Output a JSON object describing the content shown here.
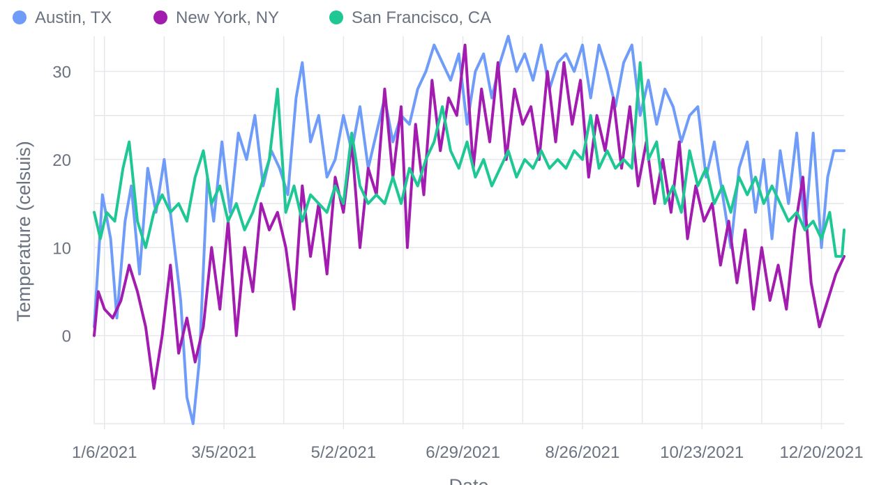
{
  "chart_data": {
    "type": "line",
    "xlabel": "Date",
    "ylabel": "Temperature (celsuis)",
    "x_ticks": [
      "1/6/2021",
      "3/5/2021",
      "5/2/2021",
      "6/29/2021",
      "8/26/2021",
      "10/23/2021",
      "12/20/2021"
    ],
    "y_ticks": [
      0,
      10,
      20,
      30
    ],
    "ylim": [
      -10,
      34
    ],
    "xlim": [
      "2021-01-01",
      "2021-12-31"
    ],
    "grid": true,
    "legend_position": "top-left",
    "series": [
      {
        "name": "Austin, TX",
        "color": "#6f9cf8",
        "points": [
          [
            "2021-01-01",
            1
          ],
          [
            "2021-01-05",
            16
          ],
          [
            "2021-01-09",
            11
          ],
          [
            "2021-01-12",
            2
          ],
          [
            "2021-01-16",
            13
          ],
          [
            "2021-01-19",
            17
          ],
          [
            "2021-01-23",
            7
          ],
          [
            "2021-01-27",
            19
          ],
          [
            "2021-01-31",
            14
          ],
          [
            "2021-02-04",
            20
          ],
          [
            "2021-02-08",
            12
          ],
          [
            "2021-02-12",
            4
          ],
          [
            "2021-02-15",
            -7
          ],
          [
            "2021-02-18",
            -10
          ],
          [
            "2021-02-21",
            -3
          ],
          [
            "2021-02-25",
            18
          ],
          [
            "2021-02-28",
            13
          ],
          [
            "2021-03-04",
            22
          ],
          [
            "2021-03-08",
            14
          ],
          [
            "2021-03-12",
            23
          ],
          [
            "2021-03-16",
            20
          ],
          [
            "2021-03-20",
            25
          ],
          [
            "2021-03-24",
            17
          ],
          [
            "2021-03-28",
            21
          ],
          [
            "2021-04-01",
            19
          ],
          [
            "2021-04-05",
            16
          ],
          [
            "2021-04-09",
            27
          ],
          [
            "2021-04-12",
            31
          ],
          [
            "2021-04-16",
            22
          ],
          [
            "2021-04-20",
            25
          ],
          [
            "2021-04-24",
            18
          ],
          [
            "2021-04-28",
            20
          ],
          [
            "2021-05-02",
            25
          ],
          [
            "2021-05-06",
            21
          ],
          [
            "2021-05-10",
            26
          ],
          [
            "2021-05-14",
            19
          ],
          [
            "2021-05-18",
            23
          ],
          [
            "2021-05-22",
            27
          ],
          [
            "2021-05-26",
            22
          ],
          [
            "2021-05-30",
            25
          ],
          [
            "2021-06-03",
            24
          ],
          [
            "2021-06-07",
            28
          ],
          [
            "2021-06-11",
            30
          ],
          [
            "2021-06-15",
            33
          ],
          [
            "2021-06-19",
            31
          ],
          [
            "2021-06-23",
            29
          ],
          [
            "2021-06-27",
            32
          ],
          [
            "2021-07-01",
            24
          ],
          [
            "2021-07-05",
            30
          ],
          [
            "2021-07-09",
            32
          ],
          [
            "2021-07-13",
            27
          ],
          [
            "2021-07-17",
            31
          ],
          [
            "2021-07-21",
            34
          ],
          [
            "2021-07-25",
            30
          ],
          [
            "2021-07-29",
            32
          ],
          [
            "2021-08-02",
            29
          ],
          [
            "2021-08-06",
            33
          ],
          [
            "2021-08-10",
            28
          ],
          [
            "2021-08-14",
            31
          ],
          [
            "2021-08-18",
            32
          ],
          [
            "2021-08-22",
            30
          ],
          [
            "2021-08-26",
            33
          ],
          [
            "2021-08-30",
            27
          ],
          [
            "2021-09-03",
            33
          ],
          [
            "2021-09-07",
            30
          ],
          [
            "2021-09-11",
            26
          ],
          [
            "2021-09-15",
            31
          ],
          [
            "2021-09-19",
            33
          ],
          [
            "2021-09-23",
            25
          ],
          [
            "2021-09-27",
            29
          ],
          [
            "2021-10-01",
            24
          ],
          [
            "2021-10-05",
            28
          ],
          [
            "2021-10-09",
            26
          ],
          [
            "2021-10-13",
            22
          ],
          [
            "2021-10-17",
            25
          ],
          [
            "2021-10-21",
            26
          ],
          [
            "2021-10-25",
            18
          ],
          [
            "2021-10-29",
            22
          ],
          [
            "2021-11-02",
            16
          ],
          [
            "2021-11-06",
            10
          ],
          [
            "2021-11-10",
            19
          ],
          [
            "2021-11-14",
            22
          ],
          [
            "2021-11-18",
            14
          ],
          [
            "2021-11-22",
            20
          ],
          [
            "2021-11-26",
            11
          ],
          [
            "2021-11-30",
            21
          ],
          [
            "2021-12-04",
            15
          ],
          [
            "2021-12-08",
            23
          ],
          [
            "2021-12-12",
            12
          ],
          [
            "2021-12-16",
            23
          ],
          [
            "2021-12-20",
            10
          ],
          [
            "2021-12-23",
            18
          ],
          [
            "2021-12-26",
            21
          ],
          [
            "2021-12-31",
            21
          ]
        ]
      },
      {
        "name": "New York, NY",
        "color": "#a21caf",
        "points": [
          [
            "2021-01-01",
            0
          ],
          [
            "2021-01-03",
            5
          ],
          [
            "2021-01-06",
            3
          ],
          [
            "2021-01-10",
            2
          ],
          [
            "2021-01-14",
            4
          ],
          [
            "2021-01-18",
            8
          ],
          [
            "2021-01-22",
            5
          ],
          [
            "2021-01-26",
            1
          ],
          [
            "2021-01-30",
            -6
          ],
          [
            "2021-02-03",
            0
          ],
          [
            "2021-02-07",
            8
          ],
          [
            "2021-02-11",
            -2
          ],
          [
            "2021-02-15",
            2
          ],
          [
            "2021-02-19",
            -3
          ],
          [
            "2021-02-23",
            1
          ],
          [
            "2021-02-27",
            10
          ],
          [
            "2021-03-03",
            3
          ],
          [
            "2021-03-07",
            13
          ],
          [
            "2021-03-11",
            0
          ],
          [
            "2021-03-15",
            10
          ],
          [
            "2021-03-19",
            5
          ],
          [
            "2021-03-23",
            15
          ],
          [
            "2021-03-27",
            12
          ],
          [
            "2021-03-31",
            14
          ],
          [
            "2021-04-04",
            10
          ],
          [
            "2021-04-08",
            3
          ],
          [
            "2021-04-12",
            17
          ],
          [
            "2021-04-16",
            9
          ],
          [
            "2021-04-20",
            15
          ],
          [
            "2021-04-24",
            7
          ],
          [
            "2021-04-28",
            18
          ],
          [
            "2021-05-02",
            14
          ],
          [
            "2021-05-06",
            22
          ],
          [
            "2021-05-10",
            10
          ],
          [
            "2021-05-14",
            19
          ],
          [
            "2021-05-18",
            16
          ],
          [
            "2021-05-22",
            28
          ],
          [
            "2021-05-26",
            18
          ],
          [
            "2021-05-30",
            26
          ],
          [
            "2021-06-02",
            10
          ],
          [
            "2021-06-06",
            24
          ],
          [
            "2021-06-10",
            16
          ],
          [
            "2021-06-14",
            29
          ],
          [
            "2021-06-18",
            21
          ],
          [
            "2021-06-22",
            27
          ],
          [
            "2021-06-26",
            25
          ],
          [
            "2021-06-30",
            33
          ],
          [
            "2021-07-04",
            19
          ],
          [
            "2021-07-08",
            28
          ],
          [
            "2021-07-12",
            22
          ],
          [
            "2021-07-16",
            31
          ],
          [
            "2021-07-20",
            20
          ],
          [
            "2021-07-24",
            28
          ],
          [
            "2021-07-28",
            24
          ],
          [
            "2021-08-01",
            26
          ],
          [
            "2021-08-05",
            20
          ],
          [
            "2021-08-09",
            30
          ],
          [
            "2021-08-13",
            22
          ],
          [
            "2021-08-17",
            31
          ],
          [
            "2021-08-21",
            24
          ],
          [
            "2021-08-25",
            29
          ],
          [
            "2021-08-29",
            18
          ],
          [
            "2021-09-02",
            25
          ],
          [
            "2021-09-06",
            21
          ],
          [
            "2021-09-10",
            27
          ],
          [
            "2021-09-14",
            19
          ],
          [
            "2021-09-18",
            26
          ],
          [
            "2021-09-22",
            17
          ],
          [
            "2021-09-26",
            22
          ],
          [
            "2021-09-30",
            15
          ],
          [
            "2021-10-04",
            20
          ],
          [
            "2021-10-08",
            14
          ],
          [
            "2021-10-12",
            22
          ],
          [
            "2021-10-16",
            11
          ],
          [
            "2021-10-20",
            17
          ],
          [
            "2021-10-24",
            13
          ],
          [
            "2021-10-28",
            15
          ],
          [
            "2021-11-01",
            8
          ],
          [
            "2021-11-05",
            13
          ],
          [
            "2021-11-09",
            6
          ],
          [
            "2021-11-13",
            12
          ],
          [
            "2021-11-17",
            3
          ],
          [
            "2021-11-21",
            10
          ],
          [
            "2021-11-25",
            4
          ],
          [
            "2021-11-29",
            8
          ],
          [
            "2021-12-03",
            3
          ],
          [
            "2021-12-07",
            12
          ],
          [
            "2021-12-11",
            18
          ],
          [
            "2021-12-15",
            6
          ],
          [
            "2021-12-19",
            1
          ],
          [
            "2021-12-23",
            4
          ],
          [
            "2021-12-27",
            7
          ],
          [
            "2021-12-31",
            9
          ]
        ]
      },
      {
        "name": "San Francisco, CA",
        "color": "#1fc795",
        "points": [
          [
            "2021-01-01",
            14
          ],
          [
            "2021-01-04",
            11
          ],
          [
            "2021-01-07",
            14
          ],
          [
            "2021-01-11",
            13
          ],
          [
            "2021-01-15",
            19
          ],
          [
            "2021-01-18",
            22
          ],
          [
            "2021-01-22",
            13
          ],
          [
            "2021-01-26",
            10
          ],
          [
            "2021-01-30",
            14
          ],
          [
            "2021-02-03",
            16
          ],
          [
            "2021-02-07",
            14
          ],
          [
            "2021-02-11",
            15
          ],
          [
            "2021-02-15",
            13
          ],
          [
            "2021-02-19",
            18
          ],
          [
            "2021-02-23",
            21
          ],
          [
            "2021-02-27",
            15
          ],
          [
            "2021-03-03",
            17
          ],
          [
            "2021-03-07",
            13
          ],
          [
            "2021-03-11",
            15
          ],
          [
            "2021-03-15",
            12
          ],
          [
            "2021-03-19",
            14
          ],
          [
            "2021-03-23",
            17
          ],
          [
            "2021-03-27",
            20
          ],
          [
            "2021-03-31",
            28
          ],
          [
            "2021-04-04",
            14
          ],
          [
            "2021-04-08",
            17
          ],
          [
            "2021-04-12",
            13
          ],
          [
            "2021-04-16",
            16
          ],
          [
            "2021-04-20",
            15
          ],
          [
            "2021-04-24",
            14
          ],
          [
            "2021-04-28",
            17
          ],
          [
            "2021-05-02",
            15
          ],
          [
            "2021-05-06",
            23
          ],
          [
            "2021-05-10",
            17
          ],
          [
            "2021-05-14",
            15
          ],
          [
            "2021-05-18",
            16
          ],
          [
            "2021-05-22",
            15
          ],
          [
            "2021-05-26",
            18
          ],
          [
            "2021-05-30",
            15
          ],
          [
            "2021-06-03",
            19
          ],
          [
            "2021-06-07",
            17
          ],
          [
            "2021-06-11",
            20
          ],
          [
            "2021-06-15",
            22
          ],
          [
            "2021-06-19",
            26
          ],
          [
            "2021-06-23",
            21
          ],
          [
            "2021-06-27",
            19
          ],
          [
            "2021-07-01",
            22
          ],
          [
            "2021-07-05",
            18
          ],
          [
            "2021-07-09",
            20
          ],
          [
            "2021-07-13",
            17
          ],
          [
            "2021-07-17",
            19
          ],
          [
            "2021-07-21",
            21
          ],
          [
            "2021-07-25",
            18
          ],
          [
            "2021-07-29",
            20
          ],
          [
            "2021-08-02",
            19
          ],
          [
            "2021-08-06",
            21
          ],
          [
            "2021-08-10",
            19
          ],
          [
            "2021-08-14",
            20
          ],
          [
            "2021-08-18",
            19
          ],
          [
            "2021-08-22",
            21
          ],
          [
            "2021-08-26",
            20
          ],
          [
            "2021-08-30",
            25
          ],
          [
            "2021-09-03",
            19
          ],
          [
            "2021-09-07",
            21
          ],
          [
            "2021-09-11",
            19
          ],
          [
            "2021-09-15",
            20
          ],
          [
            "2021-09-19",
            19
          ],
          [
            "2021-09-23",
            31
          ],
          [
            "2021-09-27",
            20
          ],
          [
            "2021-10-01",
            22
          ],
          [
            "2021-10-05",
            15
          ],
          [
            "2021-10-09",
            17
          ],
          [
            "2021-10-13",
            14
          ],
          [
            "2021-10-17",
            21
          ],
          [
            "2021-10-21",
            17
          ],
          [
            "2021-10-25",
            19
          ],
          [
            "2021-10-29",
            15
          ],
          [
            "2021-11-02",
            17
          ],
          [
            "2021-11-06",
            14
          ],
          [
            "2021-11-10",
            18
          ],
          [
            "2021-11-14",
            16
          ],
          [
            "2021-11-18",
            18
          ],
          [
            "2021-11-22",
            15
          ],
          [
            "2021-11-26",
            17
          ],
          [
            "2021-11-30",
            15
          ],
          [
            "2021-12-04",
            13
          ],
          [
            "2021-12-08",
            14
          ],
          [
            "2021-12-12",
            12
          ],
          [
            "2021-12-16",
            13
          ],
          [
            "2021-12-20",
            11
          ],
          [
            "2021-12-24",
            14
          ],
          [
            "2021-12-27",
            9
          ],
          [
            "2021-12-30",
            9
          ],
          [
            "2021-12-31",
            12
          ]
        ]
      }
    ]
  }
}
